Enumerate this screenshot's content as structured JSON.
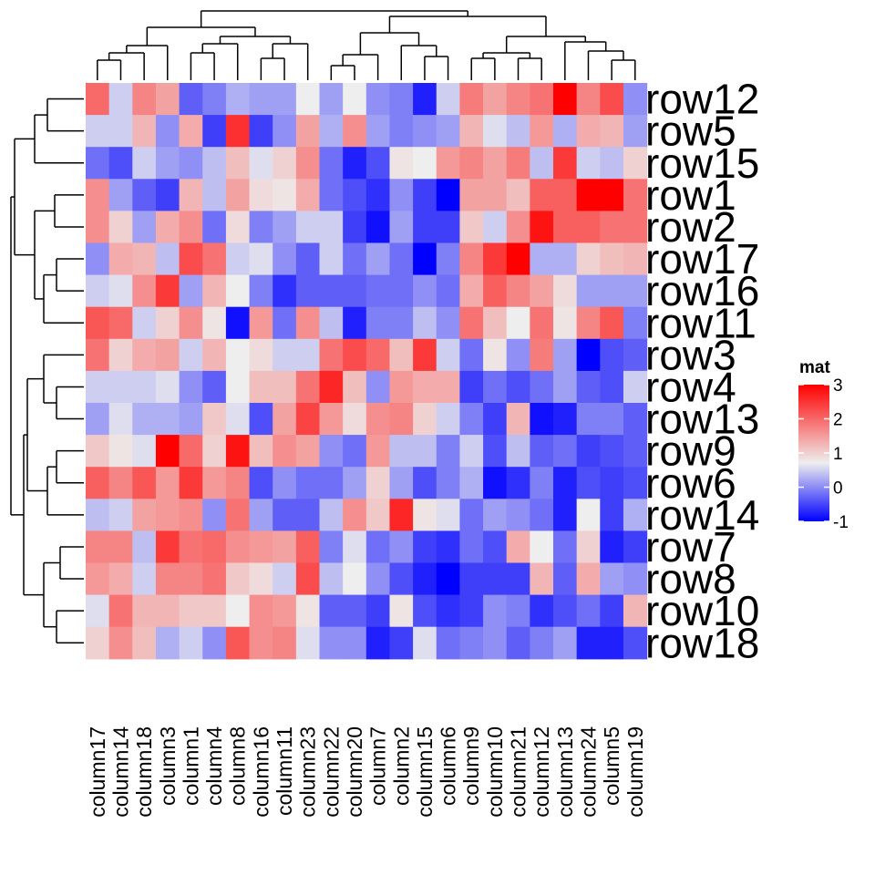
{
  "chart_data": {
    "type": "heatmap",
    "legend_title": "mat",
    "legend_ticks": [
      3,
      2,
      1,
      0,
      -1
    ],
    "color_scale": {
      "min": -1,
      "mid": 0.5,
      "max": 3,
      "low": "#0000ff",
      "mid_color": "#eeeeee",
      "high": "#ff0000"
    },
    "rows": [
      "row12",
      "row5",
      "row15",
      "row1",
      "row2",
      "row17",
      "row16",
      "row11",
      "row3",
      "row4",
      "row13",
      "row9",
      "row6",
      "row14",
      "row7",
      "row8",
      "row10",
      "row18"
    ],
    "columns": [
      "column17",
      "column14",
      "column18",
      "column3",
      "column1",
      "column4",
      "column8",
      "column16",
      "column11",
      "column23",
      "column22",
      "column20",
      "column7",
      "column2",
      "column15",
      "column6",
      "column9",
      "column10",
      "column21",
      "column12",
      "column13",
      "column24",
      "column5",
      "column19"
    ],
    "values": [
      [
        1.9,
        0.3,
        1.6,
        1.3,
        -0.4,
        -0.2,
        0.1,
        0.0,
        0.0,
        0.5,
        0.0,
        0.5,
        -0.1,
        -0.2,
        -0.8,
        0.3,
        1.7,
        1.3,
        1.6,
        1.8,
        3.0,
        1.6,
        2.2,
        -0.1
      ],
      [
        0.3,
        0.3,
        1.1,
        -0.1,
        1.2,
        -0.6,
        2.5,
        -0.6,
        -0.1,
        1.3,
        0.1,
        1.5,
        0.0,
        -0.2,
        -0.1,
        0.0,
        1.1,
        0.4,
        0.2,
        1.4,
        0.1,
        1.2,
        1.1,
        0.0
      ],
      [
        -0.3,
        -0.5,
        0.3,
        0.0,
        -0.1,
        0.2,
        1.0,
        0.4,
        0.8,
        1.5,
        -0.3,
        -0.8,
        -0.5,
        0.6,
        0.5,
        1.4,
        1.6,
        1.3,
        1.7,
        0.2,
        2.4,
        0.3,
        0.2,
        0.8
      ],
      [
        1.5,
        0.0,
        -0.4,
        -0.6,
        1.1,
        0.2,
        1.3,
        0.7,
        0.6,
        1.2,
        -0.3,
        -0.5,
        -0.7,
        -0.1,
        -0.6,
        -1.0,
        1.3,
        1.3,
        1.0,
        2.0,
        2.0,
        3.0,
        3.0,
        1.8
      ],
      [
        1.5,
        0.8,
        0.0,
        1.2,
        1.5,
        -0.3,
        0.7,
        -0.2,
        0.0,
        0.3,
        0.3,
        -0.6,
        -0.9,
        0.0,
        -0.6,
        -0.6,
        0.9,
        0.3,
        1.5,
        2.8,
        2.0,
        2.0,
        1.8,
        1.8
      ],
      [
        -0.1,
        1.2,
        1.1,
        0.2,
        2.2,
        1.8,
        0.3,
        0.4,
        -0.1,
        -0.4,
        0.3,
        -0.3,
        0.0,
        -0.3,
        -1.0,
        -0.2,
        1.6,
        2.4,
        3.0,
        0.1,
        0.1,
        0.8,
        1.0,
        1.1
      ],
      [
        0.3,
        0.4,
        1.5,
        2.4,
        0.0,
        1.1,
        0.5,
        -0.2,
        -0.7,
        -0.4,
        -0.4,
        -0.4,
        -0.3,
        -0.3,
        -0.1,
        -0.3,
        1.2,
        2.0,
        1.6,
        1.3,
        0.7,
        0.0,
        0.0,
        0.0
      ],
      [
        2.1,
        1.9,
        0.3,
        0.8,
        1.5,
        0.6,
        -0.9,
        1.4,
        -0.3,
        1.5,
        0.2,
        -0.8,
        -0.2,
        -0.2,
        0.2,
        -0.1,
        1.8,
        1.0,
        0.5,
        1.8,
        0.6,
        1.6,
        2.1,
        -0.2
      ],
      [
        1.8,
        0.8,
        1.2,
        1.3,
        0.3,
        1.1,
        0.5,
        0.7,
        0.3,
        0.3,
        1.8,
        2.2,
        1.9,
        1.0,
        2.4,
        0.3,
        -0.3,
        0.6,
        -0.1,
        1.7,
        0.0,
        -1.0,
        -0.5,
        -0.4
      ],
      [
        0.3,
        0.3,
        0.3,
        0.4,
        -0.1,
        -0.4,
        0.5,
        1.0,
        1.0,
        1.8,
        2.6,
        1.0,
        -0.1,
        1.4,
        1.2,
        1.2,
        -0.6,
        -0.3,
        -0.5,
        -0.3,
        0.0,
        -0.4,
        -0.5,
        0.3
      ],
      [
        0.0,
        0.4,
        0.1,
        0.1,
        0.0,
        0.9,
        0.4,
        -0.5,
        1.3,
        2.3,
        1.4,
        0.7,
        1.5,
        1.6,
        0.8,
        0.3,
        -0.2,
        -0.6,
        1.1,
        -0.9,
        -0.8,
        -0.2,
        -0.2,
        -0.4
      ],
      [
        0.9,
        0.6,
        0.4,
        3.0,
        1.9,
        0.8,
        2.8,
        1.0,
        1.5,
        1.3,
        -0.1,
        -0.3,
        1.4,
        0.2,
        0.2,
        -0.2,
        0.3,
        -0.5,
        0.2,
        -0.4,
        -0.3,
        -0.6,
        -0.5,
        -0.4
      ],
      [
        2.0,
        1.6,
        2.1,
        1.4,
        2.4,
        1.4,
        1.6,
        -0.5,
        -0.1,
        -0.3,
        -0.3,
        0.0,
        0.8,
        0.0,
        -0.5,
        -0.2,
        0.1,
        -0.9,
        -0.7,
        -0.2,
        -0.8,
        -0.5,
        -0.6,
        -0.5
      ],
      [
        0.2,
        0.3,
        1.3,
        1.4,
        1.5,
        -0.1,
        1.8,
        0.0,
        -0.4,
        -0.4,
        0.2,
        1.5,
        0.9,
        2.6,
        0.6,
        0.4,
        -0.3,
        0.0,
        -0.1,
        -0.3,
        -0.8,
        0.5,
        -0.6,
        0.1
      ],
      [
        1.6,
        1.6,
        0.2,
        2.4,
        1.8,
        1.9,
        1.5,
        1.4,
        1.3,
        2.0,
        -0.2,
        0.4,
        -0.3,
        -0.1,
        -0.6,
        -0.7,
        -0.3,
        -0.5,
        1.2,
        0.5,
        -0.3,
        0.8,
        -0.8,
        -0.6
      ],
      [
        1.4,
        1.2,
        0.3,
        1.6,
        1.6,
        1.8,
        0.9,
        0.7,
        0.3,
        2.2,
        0.2,
        0.5,
        -0.1,
        -0.5,
        -0.8,
        -1.0,
        -0.6,
        -0.6,
        -0.6,
        1.1,
        -0.4,
        1.2,
        0.0,
        -0.1
      ],
      [
        0.4,
        1.8,
        1.1,
        1.1,
        0.9,
        0.9,
        0.5,
        1.5,
        1.4,
        0.6,
        -0.4,
        -0.4,
        -0.6,
        0.6,
        -0.5,
        -0.7,
        -0.6,
        -0.1,
        -0.2,
        -0.7,
        -0.5,
        -0.3,
        -0.6,
        1.1
      ],
      [
        0.8,
        1.5,
        1.0,
        0.1,
        0.3,
        -0.1,
        2.1,
        1.5,
        1.6,
        0.4,
        -0.1,
        -0.1,
        -0.8,
        -0.6,
        0.4,
        -0.3,
        -0.2,
        -0.1,
        -0.4,
        -0.2,
        0.0,
        -0.8,
        -0.8,
        -0.5
      ]
    ]
  }
}
